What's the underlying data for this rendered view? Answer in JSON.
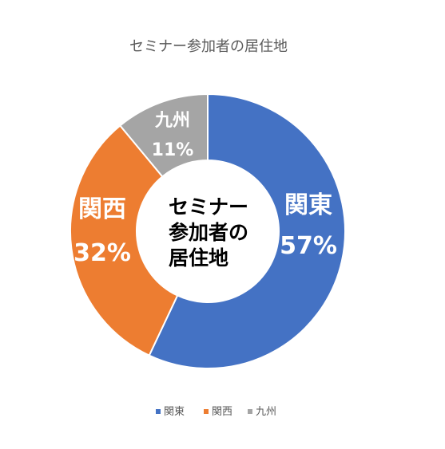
{
  "chart_data": {
    "type": "pie",
    "variant": "doughnut",
    "title": "セミナー参加者の居住地",
    "center_text": [
      "セミナー",
      "参加者の",
      "居住地"
    ],
    "categories": [
      "関東",
      "関西",
      "九州"
    ],
    "values": [
      57,
      32,
      11
    ],
    "value_labels": [
      "57%",
      "32%",
      "11%"
    ],
    "colors": [
      "#4472C4",
      "#ED7D31",
      "#A5A5A5"
    ],
    "legend": {
      "position": "bottom",
      "entries": [
        "関東",
        "関西",
        "九州"
      ]
    }
  }
}
